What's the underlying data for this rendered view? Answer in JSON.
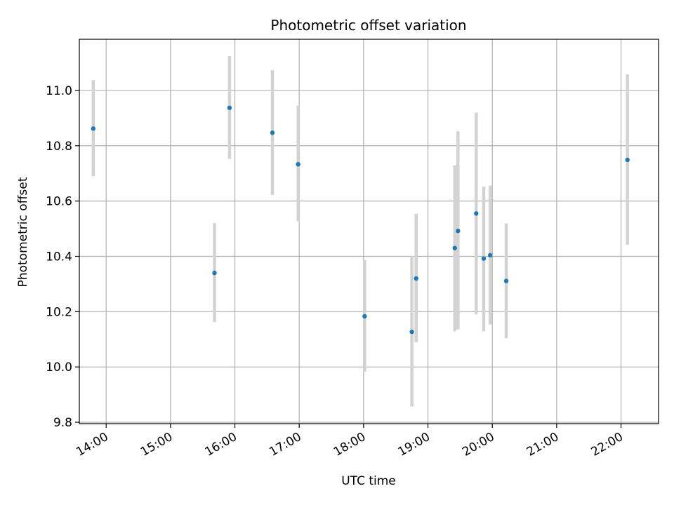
{
  "chart_data": {
    "type": "scatter",
    "title": "Photometric offset variation",
    "xlabel": "UTC time",
    "ylabel": "Photometric offset",
    "xlim": [
      "13:35",
      "22:35"
    ],
    "ylim": [
      9.795,
      11.185
    ],
    "x_ticks": [
      "14:00",
      "15:00",
      "16:00",
      "17:00",
      "18:00",
      "19:00",
      "20:00",
      "21:00",
      "22:00"
    ],
    "y_ticks": [
      "9.8",
      "10.0",
      "10.2",
      "10.4",
      "10.6",
      "10.8",
      "11.0"
    ],
    "grid": true,
    "legend": "none",
    "colors": {
      "point": "#1f77b4",
      "errorbar": "#d3d3d3",
      "grid": "#b0b0b0"
    },
    "points": [
      {
        "x": "13:48",
        "y": 10.862,
        "ylow": 10.69,
        "yhigh": 11.038
      },
      {
        "x": "15:41",
        "y": 10.34,
        "ylow": 10.162,
        "yhigh": 10.52
      },
      {
        "x": "15:55",
        "y": 10.937,
        "ylow": 10.752,
        "yhigh": 11.124
      },
      {
        "x": "16:35",
        "y": 10.847,
        "ylow": 10.622,
        "yhigh": 11.073
      },
      {
        "x": "16:59",
        "y": 10.733,
        "ylow": 10.527,
        "yhigh": 10.945
      },
      {
        "x": "18:01",
        "y": 10.183,
        "ylow": 9.982,
        "yhigh": 10.387
      },
      {
        "x": "18:45",
        "y": 10.127,
        "ylow": 9.857,
        "yhigh": 10.401
      },
      {
        "x": "18:49",
        "y": 10.32,
        "ylow": 10.089,
        "yhigh": 10.554
      },
      {
        "x": "19:25",
        "y": 10.43,
        "ylow": 10.129,
        "yhigh": 10.729
      },
      {
        "x": "19:28",
        "y": 10.492,
        "ylow": 10.136,
        "yhigh": 10.852
      },
      {
        "x": "19:45",
        "y": 10.555,
        "ylow": 10.19,
        "yhigh": 10.92
      },
      {
        "x": "19:52",
        "y": 10.392,
        "ylow": 10.129,
        "yhigh": 10.652
      },
      {
        "x": "19:58",
        "y": 10.404,
        "ylow": 10.154,
        "yhigh": 10.656
      },
      {
        "x": "20:13",
        "y": 10.311,
        "ylow": 10.104,
        "yhigh": 10.519
      },
      {
        "x": "22:06",
        "y": 10.749,
        "ylow": 10.442,
        "yhigh": 11.058
      }
    ]
  }
}
